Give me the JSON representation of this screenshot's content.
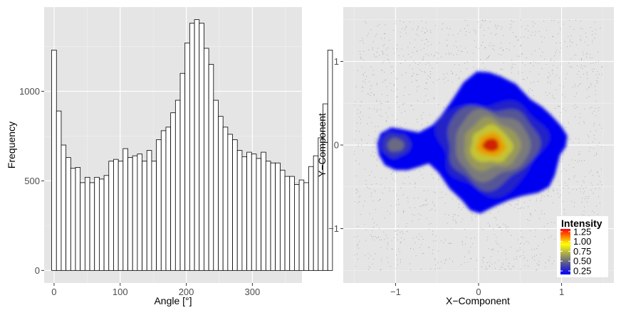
{
  "chart_data": [
    {
      "type": "bar",
      "title": "",
      "xlabel": "Angle [°]",
      "ylabel": "Frequency",
      "xlim": [
        -15,
        375
      ],
      "ylim": [
        -70,
        1470
      ],
      "xticks": [
        {
          "value": 0,
          "label": "0"
        },
        {
          "value": 100,
          "label": "100"
        },
        {
          "value": 200,
          "label": "200"
        },
        {
          "value": 300,
          "label": "300"
        }
      ],
      "yticks": [
        {
          "value": 0,
          "label": "0"
        },
        {
          "value": 500,
          "label": "500"
        },
        {
          "value": 1000,
          "label": "1000"
        }
      ],
      "bin_width": 7.2,
      "bin_start": 0,
      "values": [
        1230,
        890,
        700,
        630,
        570,
        575,
        490,
        520,
        490,
        520,
        510,
        530,
        610,
        620,
        610,
        680,
        630,
        640,
        650,
        610,
        670,
        610,
        730,
        780,
        800,
        880,
        950,
        1100,
        1270,
        1380,
        1400,
        1380,
        1240,
        1150,
        950,
        860,
        800,
        760,
        730,
        670,
        635,
        660,
        650,
        625,
        660,
        610,
        600,
        600,
        560,
        525,
        525,
        480,
        505,
        490,
        580,
        640,
        740,
        930,
        1230
      ],
      "bar_fill": "#ffffff",
      "bar_stroke": "#000000",
      "panel_bg": "#e5e5e5",
      "grid": true
    },
    {
      "type": "density_scatter",
      "title": "",
      "xlabel": "X−Component",
      "ylabel": "Y−Component",
      "xlim": [
        -1.63,
        1.63
      ],
      "ylim": [
        -1.65,
        1.65
      ],
      "xticks": [
        {
          "value": -1,
          "label": "−1"
        },
        {
          "value": 0,
          "label": "0"
        },
        {
          "value": 1,
          "label": "1"
        }
      ],
      "yticks": [
        {
          "value": -1,
          "label": "−1"
        },
        {
          "value": 0,
          "label": "0"
        },
        {
          "value": 1,
          "label": "1"
        }
      ],
      "scatter_range": {
        "x": [
          -1.5,
          1.5
        ],
        "y": [
          -1.5,
          1.5
        ]
      },
      "density_peaks": [
        {
          "x": 0.15,
          "y": 0.0,
          "intensity": 1.3
        },
        {
          "x": -1.0,
          "y": 0.0,
          "intensity": 0.35
        }
      ],
      "panel_bg": "#e5e5e5",
      "grid": true,
      "legend": {
        "title": "Intensity",
        "position": "bottom-right",
        "range": [
          0.16,
          1.32
        ],
        "ticks": [
          {
            "value": 0.25,
            "label": "0.25"
          },
          {
            "value": 0.5,
            "label": "0.50"
          },
          {
            "value": 0.75,
            "label": "0.75"
          },
          {
            "value": 1.0,
            "label": "1.00"
          },
          {
            "value": 1.25,
            "label": "1.25"
          }
        ],
        "colors": [
          "#0000ff",
          "#3a3ab0",
          "#7a7a70",
          "#bbbb40",
          "#ffff00",
          "#ff8000",
          "#ff0000"
        ]
      }
    }
  ]
}
